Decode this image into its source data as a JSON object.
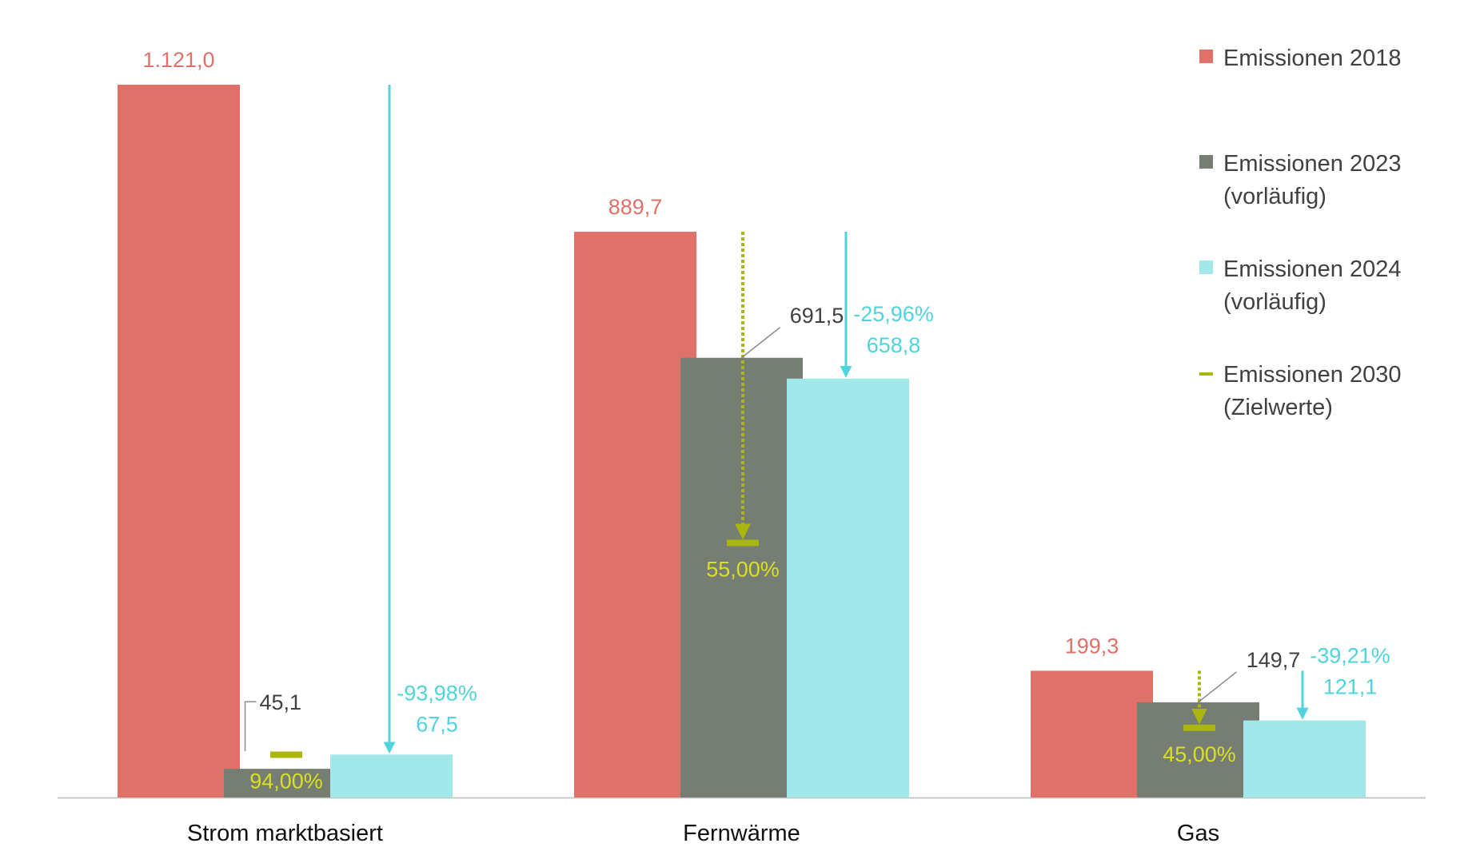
{
  "chart_data": {
    "type": "bar",
    "categories": [
      "Strom marktbasiert",
      "Fernwärme",
      "Gas"
    ],
    "series": [
      {
        "name": "Emissionen 2018",
        "values": [
          1121.0,
          889.7,
          199.3
        ],
        "labels": [
          "1.121,0",
          "889,7",
          "199,3"
        ],
        "color": "#df7169"
      },
      {
        "name": "Emissionen 2023 (vorläufig)",
        "values": [
          45.1,
          691.5,
          149.7
        ],
        "labels": [
          "45,1",
          "691,5",
          "149,7"
        ],
        "color": "#767d73"
      },
      {
        "name": "Emissionen 2024 (vorläufig)",
        "values": [
          67.5,
          658.8,
          121.1
        ],
        "labels": [
          "67,5",
          "658,8",
          "121,1"
        ],
        "color": "#a2e7ea"
      }
    ],
    "targets_2030": {
      "name": "Emissionen 2030 (Zielwerte)",
      "reduction_labels": [
        "94,00%",
        "55,00%",
        "45,00%"
      ],
      "reductions": [
        0.94,
        0.55,
        0.45
      ],
      "color": "#a9b60c",
      "label_color": "#d9e021"
    },
    "change_2024_vs_2018": {
      "labels": [
        "-93,98%",
        "-25,96%",
        "-39,21%"
      ],
      "color": "#4fd3dc"
    },
    "legend": {
      "position": "right",
      "items": [
        {
          "line1": "Emissionen 2018",
          "line2": "",
          "color": "#df7169",
          "shape": "square"
        },
        {
          "line1": "Emissionen 2023",
          "line2": "(vorläufig)",
          "color": "#767d73",
          "shape": "square"
        },
        {
          "line1": "Emissionen 2024",
          "line2": "(vorläufig)",
          "color": "#a2e7ea",
          "shape": "square"
        },
        {
          "line1": "Emissionen 2030",
          "line2": "(Zielwerte)",
          "color": "#a9b60c",
          "shape": "dash"
        }
      ]
    },
    "ylim": [
      0,
      1121.0
    ],
    "grid": false,
    "title": "",
    "xlabel": "",
    "ylabel": ""
  }
}
